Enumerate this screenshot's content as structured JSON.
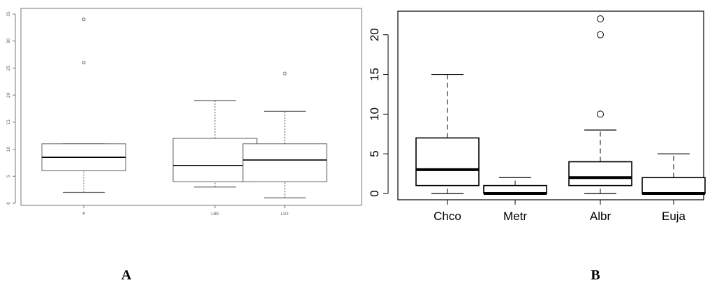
{
  "chart_data": [
    {
      "type": "box",
      "panel_label": "A",
      "categories": [
        "P",
        "L89",
        "L93"
      ],
      "boxes": [
        {
          "category": "P",
          "whisker_low": 2,
          "q1": 6,
          "median": 8.5,
          "q3": 11,
          "whisker_high": 11,
          "outliers": [
            26,
            34
          ]
        },
        {
          "category": "L89",
          "whisker_low": 3,
          "q1": 4,
          "median": 7,
          "q3": 12,
          "whisker_high": 19,
          "outliers": []
        },
        {
          "category": "L93",
          "whisker_low": 1,
          "q1": 4,
          "median": 8,
          "q3": 11,
          "whisker_high": 17,
          "outliers": [
            24
          ]
        }
      ],
      "ylim": [
        0,
        35
      ],
      "yticks": [
        0,
        5,
        10,
        15,
        20,
        25,
        30,
        35
      ],
      "grid": false
    },
    {
      "type": "box",
      "panel_label": "B",
      "categories": [
        "Chco",
        "Metr",
        "Albr",
        "Euja"
      ],
      "boxes": [
        {
          "category": "Chco",
          "whisker_low": 0,
          "q1": 1,
          "median": 3,
          "q3": 7,
          "whisker_high": 15,
          "outliers": []
        },
        {
          "category": "Metr",
          "whisker_low": 0,
          "q1": 0,
          "median": 0,
          "q3": 1,
          "whisker_high": 2,
          "outliers": []
        },
        {
          "category": "Albr",
          "whisker_low": 0,
          "q1": 1,
          "median": 2,
          "q3": 4,
          "whisker_high": 8,
          "outliers": [
            10,
            20,
            22
          ]
        },
        {
          "category": "Euja",
          "whisker_low": 0,
          "q1": 0,
          "median": 0,
          "q3": 2,
          "whisker_high": 5,
          "outliers": []
        }
      ],
      "ylim": [
        0,
        22
      ],
      "yticks": [
        0,
        5,
        10,
        15,
        20
      ],
      "grid": false
    }
  ]
}
